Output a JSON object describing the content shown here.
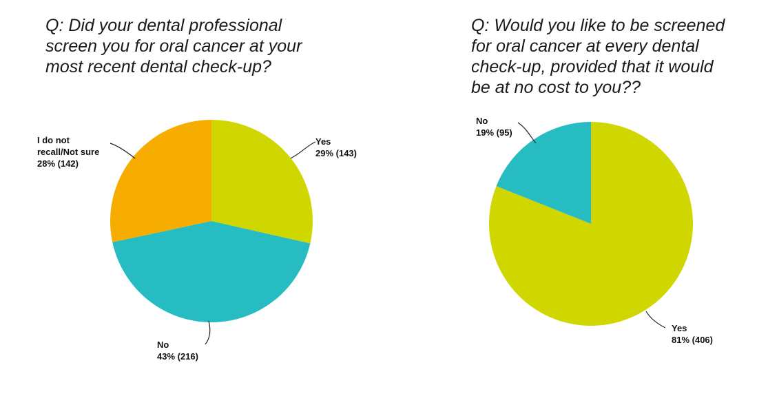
{
  "chart_data": [
    {
      "type": "pie",
      "title": "Q: Did your dental professional\nscreen you for oral cancer at your\nmost recent dental check-up?",
      "slices": [
        {
          "name": "Yes",
          "label_lines": [
            "Yes",
            "29% (143)"
          ],
          "percent": 29,
          "count": 143,
          "color": "#cfd600"
        },
        {
          "name": "No",
          "label_lines": [
            "No",
            "43% (216)"
          ],
          "percent": 43,
          "count": 216,
          "color": "#27bcc1"
        },
        {
          "name": "I do not recall/Not sure",
          "label_lines": [
            "I do not",
            "recall/Not sure",
            "",
            "28% (142)"
          ],
          "percent": 28,
          "count": 142,
          "color": "#f7ad00"
        }
      ]
    },
    {
      "type": "pie",
      "title": "Q: Would you like to be screened\nfor oral cancer at every dental\ncheck-up, provided that it would\nbe at no cost to you??",
      "slices": [
        {
          "name": "Yes",
          "label_lines": [
            "Yes",
            "81% (406)"
          ],
          "percent": 81,
          "count": 406,
          "color": "#cfd600"
        },
        {
          "name": "No",
          "label_lines": [
            "No",
            "19% (95)"
          ],
          "percent": 19,
          "count": 95,
          "color": "#27bcc1"
        }
      ]
    }
  ]
}
